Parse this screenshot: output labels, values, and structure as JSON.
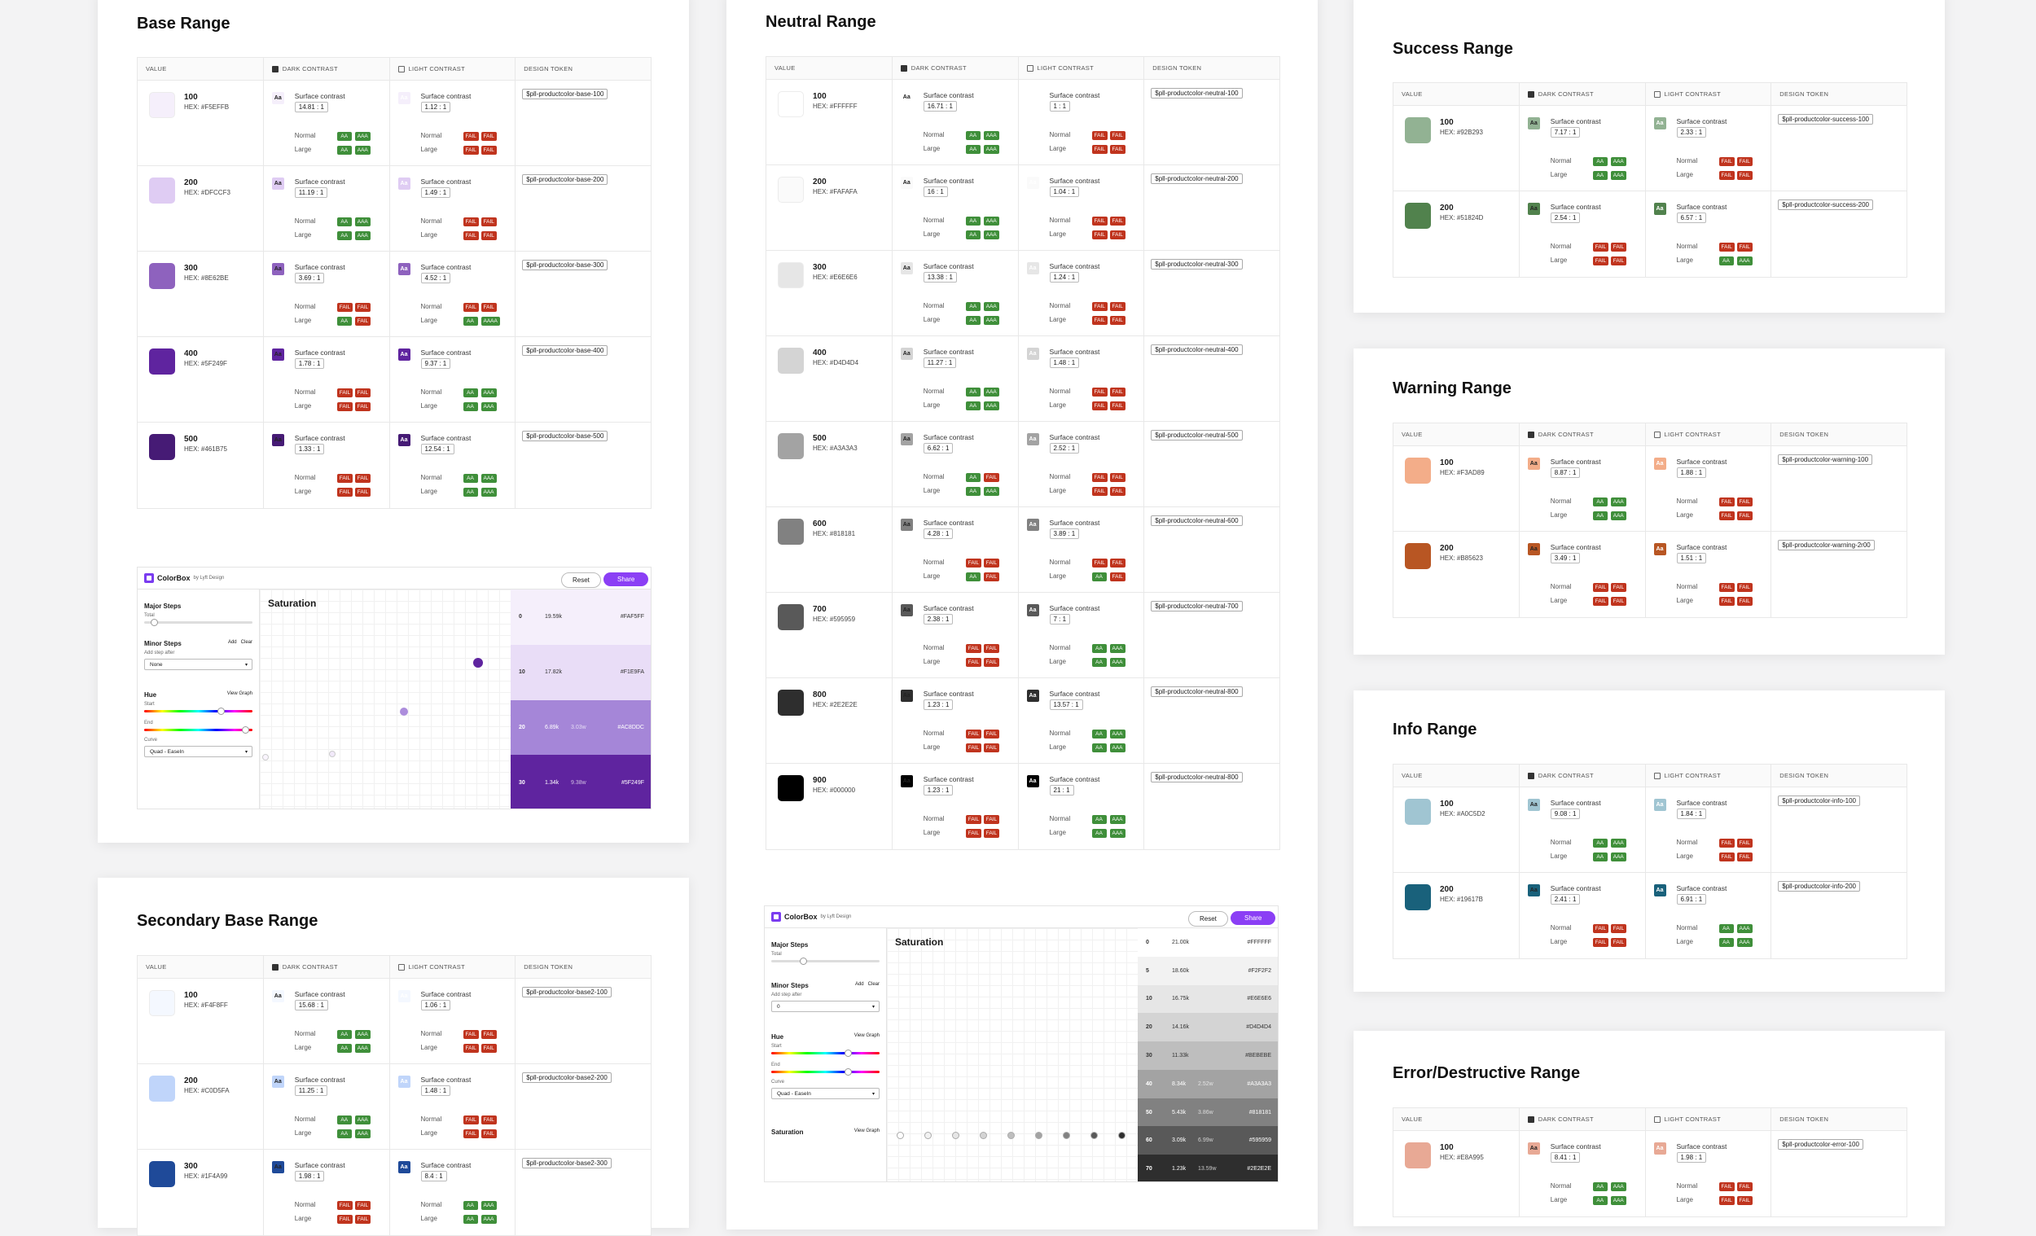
{
  "headers": {
    "value": "VALUE",
    "dark": "DARK CONTRAST",
    "light": "LIGHT CONTRAST",
    "token": "DESIGN TOKEN"
  },
  "labels": {
    "surface": "Surface contrast",
    "normal": "Normal",
    "large": "Large"
  },
  "ranges": [
    {
      "title": "Base Range",
      "rows": [
        {
          "name": "100",
          "hex": "HEX: #F5EFFB",
          "color": "#F5EFFB",
          "dark": {
            "ratio": "14.81 : 1",
            "n": [
              "AA",
              "AAA"
            ],
            "l": [
              "AA",
              "AAA"
            ]
          },
          "light": {
            "ratio": "1.12 : 1",
            "n": [
              "FAIL",
              "FAIL"
            ],
            "l": [
              "FAIL",
              "FAIL"
            ]
          },
          "token": "$pll-productcolor-base-100"
        },
        {
          "name": "200",
          "hex": "HEX: #DFCCF3",
          "color": "#DFCCF3",
          "dark": {
            "ratio": "11.19 : 1",
            "n": [
              "AA",
              "AAA"
            ],
            "l": [
              "AA",
              "AAA"
            ]
          },
          "light": {
            "ratio": "1.49 : 1",
            "n": [
              "FAIL",
              "FAIL"
            ],
            "l": [
              "FAIL",
              "FAIL"
            ]
          },
          "token": "$pll-productcolor-base-200"
        },
        {
          "name": "300",
          "hex": "HEX: #8E62BE",
          "color": "#8E62BE",
          "dark": {
            "ratio": "3.69 : 1",
            "n": [
              "FAIL",
              "FAIL"
            ],
            "l": [
              "AA",
              "FAIL"
            ]
          },
          "light": {
            "ratio": "4.52 : 1",
            "n": [
              "FAIL",
              "FAIL"
            ],
            "l": [
              "AA",
              "AAAA"
            ]
          },
          "token": "$pll-productcolor-base-300"
        },
        {
          "name": "400",
          "hex": "HEX: #5F249F",
          "color": "#5F249F",
          "dark": {
            "ratio": "1.78 : 1",
            "n": [
              "FAIL",
              "FAIL"
            ],
            "l": [
              "FAIL",
              "FAIL"
            ]
          },
          "light": {
            "ratio": "9.37 : 1",
            "n": [
              "AA",
              "AAA"
            ],
            "l": [
              "AA",
              "AAA"
            ]
          },
          "token": "$pll-productcolor-base-400"
        },
        {
          "name": "500",
          "hex": "HEX: #461B75",
          "color": "#461B75",
          "dark": {
            "ratio": "1.33 : 1",
            "n": [
              "FAIL",
              "FAIL"
            ],
            "l": [
              "FAIL",
              "FAIL"
            ]
          },
          "light": {
            "ratio": "12.54 : 1",
            "n": [
              "AA",
              "AAA"
            ],
            "l": [
              "AA",
              "AAA"
            ]
          },
          "token": "$pll-productcolor-base-500"
        }
      ]
    },
    {
      "title": "Neutral Range",
      "rows": [
        {
          "name": "100",
          "hex": "HEX: #FFFFFF",
          "color": "#FFFFFF",
          "dark": {
            "ratio": "16.71 : 1",
            "n": [
              "AA",
              "AAA"
            ],
            "l": [
              "AA",
              "AAA"
            ]
          },
          "light": {
            "ratio": "1 : 1",
            "n": [
              "FAIL",
              "FAIL"
            ],
            "l": [
              "FAIL",
              "FAIL"
            ]
          },
          "token": "$pll-productcolor-neutral-100"
        },
        {
          "name": "200",
          "hex": "HEX: #FAFAFA",
          "color": "#FAFAFA",
          "dark": {
            "ratio": "16 : 1",
            "n": [
              "AA",
              "AAA"
            ],
            "l": [
              "AA",
              "AAA"
            ]
          },
          "light": {
            "ratio": "1.04 : 1",
            "n": [
              "FAIL",
              "FAIL"
            ],
            "l": [
              "FAIL",
              "FAIL"
            ]
          },
          "token": "$pll-productcolor-neutral-200"
        },
        {
          "name": "300",
          "hex": "HEX: #E6E6E6",
          "color": "#E6E6E6",
          "dark": {
            "ratio": "13.38 : 1",
            "n": [
              "AA",
              "AAA"
            ],
            "l": [
              "AA",
              "AAA"
            ]
          },
          "light": {
            "ratio": "1.24 : 1",
            "n": [
              "FAIL",
              "FAIL"
            ],
            "l": [
              "FAIL",
              "FAIL"
            ]
          },
          "token": "$pll-productcolor-neutral-300"
        },
        {
          "name": "400",
          "hex": "HEX: #D4D4D4",
          "color": "#D4D4D4",
          "dark": {
            "ratio": "11.27 : 1",
            "n": [
              "AA",
              "AAA"
            ],
            "l": [
              "AA",
              "AAA"
            ]
          },
          "light": {
            "ratio": "1.48 : 1",
            "n": [
              "FAIL",
              "FAIL"
            ],
            "l": [
              "FAIL",
              "FAIL"
            ]
          },
          "token": "$pll-productcolor-neutral-400"
        },
        {
          "name": "500",
          "hex": "HEX: #A3A3A3",
          "color": "#A3A3A3",
          "dark": {
            "ratio": "6.62 : 1",
            "n": [
              "AA",
              "FAIL"
            ],
            "l": [
              "AA",
              "AAA"
            ]
          },
          "light": {
            "ratio": "2.52 : 1",
            "n": [
              "FAIL",
              "FAIL"
            ],
            "l": [
              "FAIL",
              "FAIL"
            ]
          },
          "token": "$pll-productcolor-neutral-500"
        },
        {
          "name": "600",
          "hex": "HEX: #818181",
          "color": "#818181",
          "dark": {
            "ratio": "4.28 : 1",
            "n": [
              "FAIL",
              "FAIL"
            ],
            "l": [
              "AA",
              "FAIL"
            ]
          },
          "light": {
            "ratio": "3.89 : 1",
            "n": [
              "FAIL",
              "FAIL"
            ],
            "l": [
              "AA",
              "FAIL"
            ]
          },
          "token": "$pll-productcolor-neutral-600"
        },
        {
          "name": "700",
          "hex": "HEX: #595959",
          "color": "#595959",
          "dark": {
            "ratio": "2.38 : 1",
            "n": [
              "FAIL",
              "FAIL"
            ],
            "l": [
              "FAIL",
              "FAIL"
            ]
          },
          "light": {
            "ratio": "7 : 1",
            "n": [
              "AA",
              "AAA"
            ],
            "l": [
              "AA",
              "AAA"
            ]
          },
          "token": "$pll-productcolor-neutral-700"
        },
        {
          "name": "800",
          "hex": "HEX: #2E2E2E",
          "color": "#2E2E2E",
          "dark": {
            "ratio": "1.23 : 1",
            "n": [
              "FAIL",
              "FAIL"
            ],
            "l": [
              "FAIL",
              "FAIL"
            ]
          },
          "light": {
            "ratio": "13.57 : 1",
            "n": [
              "AA",
              "AAA"
            ],
            "l": [
              "AA",
              "AAA"
            ]
          },
          "token": "$pll-productcolor-neutral-800"
        },
        {
          "name": "900",
          "hex": "HEX: #000000",
          "color": "#000000",
          "dark": {
            "ratio": "1.23 : 1",
            "n": [
              "FAIL",
              "FAIL"
            ],
            "l": [
              "FAIL",
              "FAIL"
            ]
          },
          "light": {
            "ratio": "21 : 1",
            "n": [
              "AA",
              "AAA"
            ],
            "l": [
              "AA",
              "AAA"
            ]
          },
          "token": "$pll-productcolor-neutral-800"
        }
      ]
    },
    {
      "title": "Success Range",
      "rows": [
        {
          "name": "100",
          "hex": "HEX: #92B293",
          "color": "#92B293",
          "dark": {
            "ratio": "7.17 : 1",
            "n": [
              "AA",
              "AAA"
            ],
            "l": [
              "AA",
              "AAA"
            ]
          },
          "light": {
            "ratio": "2.33 : 1",
            "n": [
              "FAIL",
              "FAIL"
            ],
            "l": [
              "FAIL",
              "FAIL"
            ]
          },
          "token": "$pll-productcolor-success-100"
        },
        {
          "name": "200",
          "hex": "HEX: #51824D",
          "color": "#51824D",
          "dark": {
            "ratio": "2.54 : 1",
            "n": [
              "FAIL",
              "FAIL"
            ],
            "l": [
              "FAIL",
              "FAIL"
            ]
          },
          "light": {
            "ratio": "6.57 : 1",
            "n": [
              "FAIL",
              "FAIL"
            ],
            "l": [
              "AA",
              "AAA"
            ]
          },
          "token": "$pll-productcolor-success-200"
        }
      ]
    },
    {
      "title": "Warning Range",
      "rows": [
        {
          "name": "100",
          "hex": "HEX: #F3AD89",
          "color": "#F3AD89",
          "dark": {
            "ratio": "8.87 : 1",
            "n": [
              "AA",
              "AAA"
            ],
            "l": [
              "AA",
              "AAA"
            ]
          },
          "light": {
            "ratio": "1.88 : 1",
            "n": [
              "FAIL",
              "FAIL"
            ],
            "l": [
              "FAIL",
              "FAIL"
            ]
          },
          "token": "$pll-productcolor-warning-100"
        },
        {
          "name": "200",
          "hex": "HEX: #B85623",
          "color": "#B85623",
          "dark": {
            "ratio": "3.49 : 1",
            "n": [
              "FAIL",
              "FAIL"
            ],
            "l": [
              "FAIL",
              "FAIL"
            ]
          },
          "light": {
            "ratio": "1.51 : 1",
            "n": [
              "FAIL",
              "FAIL"
            ],
            "l": [
              "FAIL",
              "FAIL"
            ]
          },
          "token": "$pll-productcolor-warning-2r00"
        }
      ]
    },
    {
      "title": "Info Range",
      "rows": [
        {
          "name": "100",
          "hex": "HEX: #A0C5D2",
          "color": "#A0C5D2",
          "dark": {
            "ratio": "9.08 : 1",
            "n": [
              "AA",
              "AAA"
            ],
            "l": [
              "AA",
              "AAA"
            ]
          },
          "light": {
            "ratio": "1.84 : 1",
            "n": [
              "FAIL",
              "FAIL"
            ],
            "l": [
              "FAIL",
              "FAIL"
            ]
          },
          "token": "$pll-productcolor-info-100"
        },
        {
          "name": "200",
          "hex": "HEX: #19617B",
          "color": "#19617B",
          "dark": {
            "ratio": "2.41 : 1",
            "n": [
              "FAIL",
              "FAIL"
            ],
            "l": [
              "FAIL",
              "FAIL"
            ]
          },
          "light": {
            "ratio": "6.91 : 1",
            "n": [
              "AA",
              "AAA"
            ],
            "l": [
              "AA",
              "AAA"
            ]
          },
          "token": "$pll-productcolor-info-200"
        }
      ]
    },
    {
      "title": "Error/Destructive Range",
      "rows": [
        {
          "name": "100",
          "hex": "HEX: #E8A995",
          "color": "#E8A995",
          "dark": {
            "ratio": "8.41 : 1",
            "n": [
              "AA",
              "AAA"
            ],
            "l": [
              "AA",
              "AAA"
            ]
          },
          "light": {
            "ratio": "1.98 : 1",
            "n": [
              "FAIL",
              "FAIL"
            ],
            "l": [
              "FAIL",
              "FAIL"
            ]
          },
          "token": "$pll-productcolor-error-100"
        }
      ]
    },
    {
      "title": "Secondary Base Range",
      "rows": [
        {
          "name": "100",
          "hex": "HEX: #F4F8FF",
          "color": "#F4F8FF",
          "dark": {
            "ratio": "15.68 : 1",
            "n": [
              "AA",
              "AAA"
            ],
            "l": [
              "AA",
              "AAA"
            ]
          },
          "light": {
            "ratio": "1.06 : 1",
            "n": [
              "FAIL",
              "FAIL"
            ],
            "l": [
              "FAIL",
              "FAIL"
            ]
          },
          "token": "$pll-productcolor-base2-100"
        },
        {
          "name": "200",
          "hex": "HEX: #C0D5FA",
          "color": "#C0D5FA",
          "dark": {
            "ratio": "11.25 : 1",
            "n": [
              "AA",
              "AAA"
            ],
            "l": [
              "AA",
              "AAA"
            ]
          },
          "light": {
            "ratio": "1.48 : 1",
            "n": [
              "FAIL",
              "FAIL"
            ],
            "l": [
              "FAIL",
              "FAIL"
            ]
          },
          "token": "$pll-productcolor-base2-200"
        },
        {
          "name": "300",
          "hex": "HEX: #1F4A99",
          "color": "#1F4A99",
          "dark": {
            "ratio": "1.98 : 1",
            "n": [
              "FAIL",
              "FAIL"
            ],
            "l": [
              "FAIL",
              "FAIL"
            ]
          },
          "light": {
            "ratio": "8.4 : 1",
            "n": [
              "AA",
              "AAA"
            ],
            "l": [
              "AA",
              "AAA"
            ]
          },
          "token": "$pll-productcolor-base2-300"
        }
      ]
    }
  ],
  "colorbox": {
    "brand": "ColorBox",
    "by": "by Lyft Design",
    "reset": "Reset",
    "share": "Share",
    "major_steps": "Major Steps",
    "total": "Total",
    "minor_steps": "Minor Steps",
    "add": "Add",
    "clear": "Clear",
    "add_step_after": "Add step after",
    "hue": "Hue",
    "view_graph": "View Graph",
    "start": "Start",
    "end": "End",
    "curve": "Curve",
    "curve_value": "Quad - EaseIn",
    "saturation": "Saturation",
    "a": {
      "select": "None",
      "steps": [
        {
          "k": "0",
          "c": "19.59k",
          "c2": "",
          "hex": "#FAF5FF",
          "bg": "#F5EFFB",
          "fg": "#333"
        },
        {
          "k": "10",
          "c": "17.82k",
          "c2": "",
          "hex": "#F1E9FA",
          "bg": "#E9DDF7",
          "fg": "#333"
        },
        {
          "k": "20",
          "c": "6.89k",
          "c2": "3.03w",
          "hex": "#AC8DDC",
          "bg": "#A586D8",
          "fg": "#fff"
        },
        {
          "k": "30",
          "c": "1.34k",
          "c2": "9.38w",
          "hex": "#5F249F",
          "bg": "#5F249F",
          "fg": "#fff"
        }
      ]
    },
    "b": {
      "select": "0",
      "sat_label": "Saturation",
      "steps": [
        {
          "k": "0",
          "c": "21.00k",
          "c2": "",
          "hex": "#FFFFFF",
          "bg": "#FFFFFF",
          "fg": "#333"
        },
        {
          "k": "5",
          "c": "18.60k",
          "c2": "",
          "hex": "#F2F2F2",
          "bg": "#F2F2F2",
          "fg": "#333"
        },
        {
          "k": "10",
          "c": "16.75k",
          "c2": "",
          "hex": "#E6E6E6",
          "bg": "#E6E6E6",
          "fg": "#333"
        },
        {
          "k": "20",
          "c": "14.16k",
          "c2": "",
          "hex": "#D4D4D4",
          "bg": "#D4D4D4",
          "fg": "#333"
        },
        {
          "k": "30",
          "c": "11.33k",
          "c2": "",
          "hex": "#BEBEBE",
          "bg": "#BEBEBE",
          "fg": "#333"
        },
        {
          "k": "40",
          "c": "8.34k",
          "c2": "2.52w",
          "hex": "#A3A3A3",
          "bg": "#A3A3A3",
          "fg": "#fff"
        },
        {
          "k": "50",
          "c": "5.43k",
          "c2": "3.86w",
          "hex": "#818181",
          "bg": "#818181",
          "fg": "#fff"
        },
        {
          "k": "60",
          "c": "3.09k",
          "c2": "6.99w",
          "hex": "#595959",
          "bg": "#595959",
          "fg": "#fff"
        },
        {
          "k": "70",
          "c": "1.23k",
          "c2": "13.59w",
          "hex": "#2E2E2E",
          "bg": "#2E2E2E",
          "fg": "#fff"
        }
      ]
    }
  }
}
